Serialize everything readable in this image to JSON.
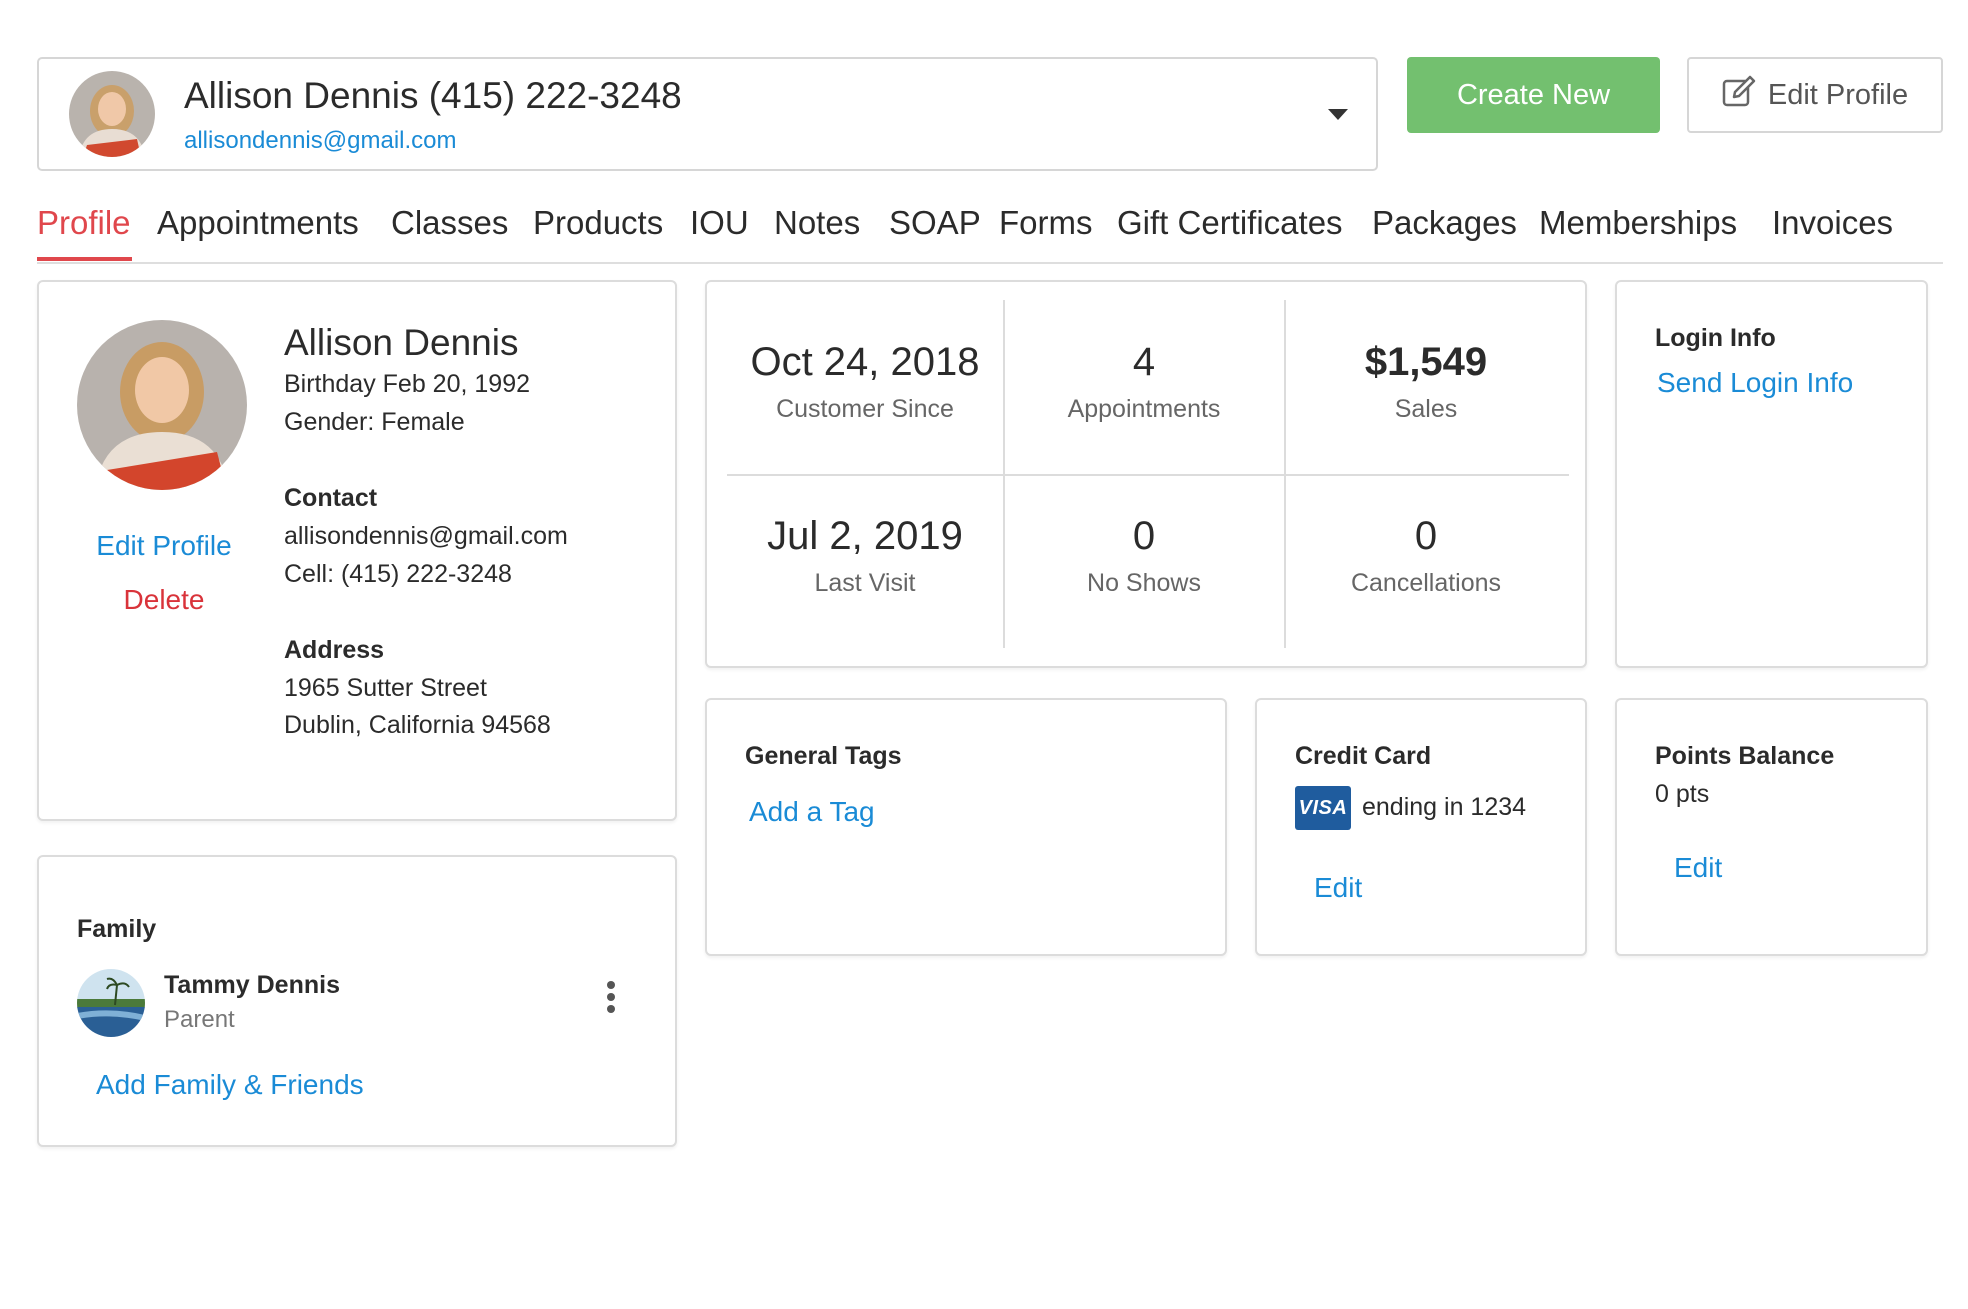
{
  "header": {
    "client_name": "Allison Dennis (415) 222-3248",
    "client_email": "allisondennis@gmail.com",
    "create_new_label": "Create New",
    "edit_profile_label": "Edit Profile"
  },
  "tabs": [
    {
      "label": "Profile",
      "active": true
    },
    {
      "label": "Appointments"
    },
    {
      "label": "Classes"
    },
    {
      "label": "Products"
    },
    {
      "label": "IOU"
    },
    {
      "label": "Notes"
    },
    {
      "label": "SOAP"
    },
    {
      "label": "Forms"
    },
    {
      "label": "Gift Certificates"
    },
    {
      "label": "Packages"
    },
    {
      "label": "Memberships"
    },
    {
      "label": "Invoices"
    }
  ],
  "profile": {
    "name": "Allison Dennis",
    "birthday": "Birthday Feb 20, 1992",
    "gender": "Gender: Female",
    "contact_heading": "Contact",
    "email": "allisondennis@gmail.com",
    "cell": "Cell: (415) 222-3248",
    "address_heading": "Address",
    "address_line1": "1965 Sutter Street",
    "address_line2": "Dublin, California 94568",
    "edit_label": "Edit Profile",
    "delete_label": "Delete"
  },
  "stats": [
    {
      "value": "Oct 24, 2018",
      "label": "Customer Since"
    },
    {
      "value": "4",
      "label": "Appointments"
    },
    {
      "value": "$1,549",
      "label": "Sales"
    },
    {
      "value": "Jul 2, 2019",
      "label": "Last Visit"
    },
    {
      "value": "0",
      "label": "No Shows"
    },
    {
      "value": "0",
      "label": "Cancellations"
    }
  ],
  "login_info": {
    "title": "Login Info",
    "link": "Send Login Info"
  },
  "general_tags": {
    "title": "General Tags",
    "link": "Add a Tag"
  },
  "credit_card": {
    "title": "Credit Card",
    "brand": "VISA",
    "ending": "ending in 1234",
    "edit_label": "Edit"
  },
  "points": {
    "title": "Points Balance",
    "value": "0 pts",
    "edit_label": "Edit"
  },
  "family": {
    "title": "Family",
    "members": [
      {
        "name": "Tammy Dennis",
        "relation": "Parent"
      }
    ],
    "add_label": "Add Family & Friends"
  },
  "colors": {
    "accent_red": "#e0474c",
    "link_blue": "#1a8bd6",
    "create_green": "#73c06f",
    "visa_blue": "#1f5c9e"
  }
}
